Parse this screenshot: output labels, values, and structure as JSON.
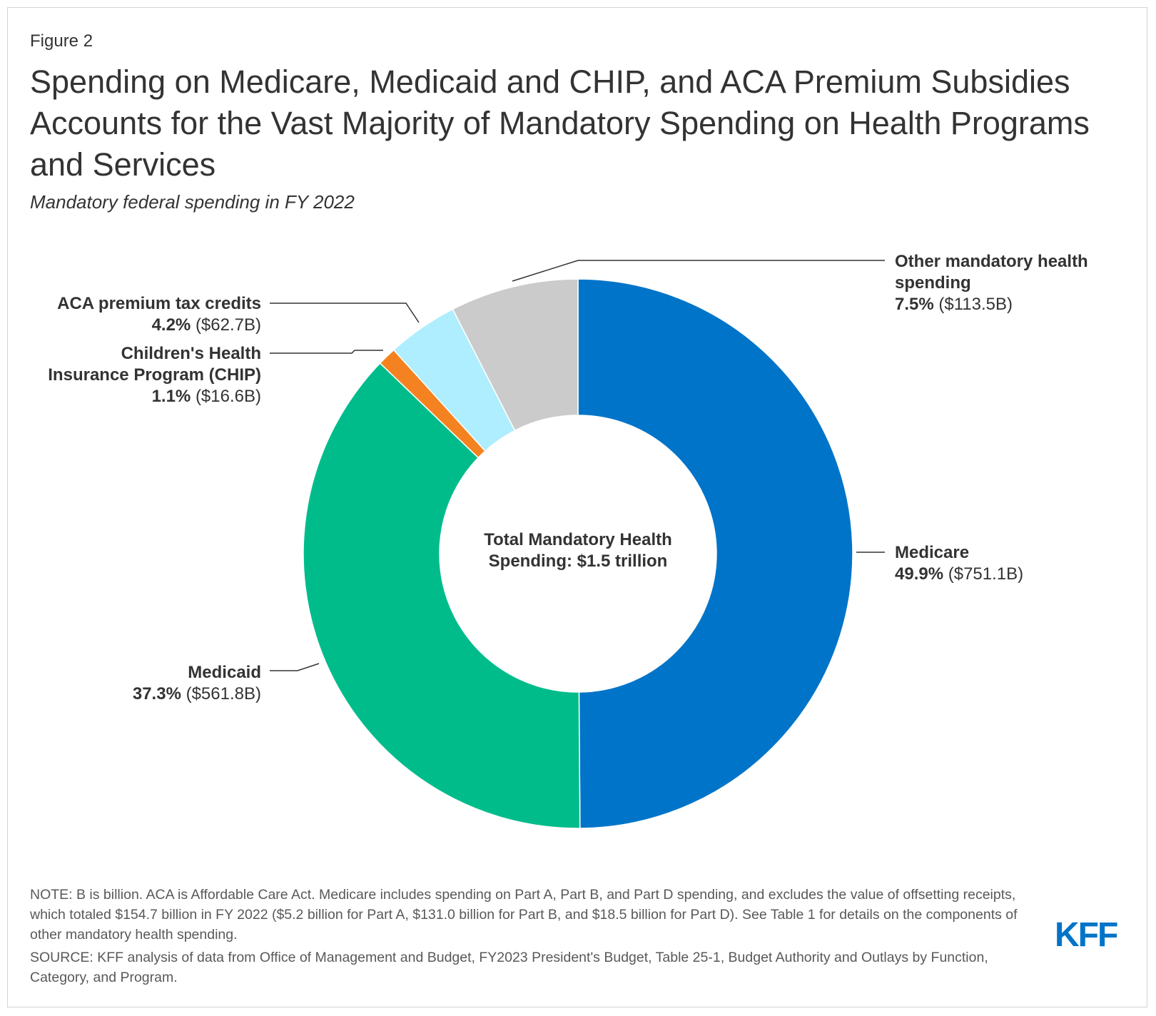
{
  "figure_label": "Figure 2",
  "title": "Spending on Medicare, Medicaid and CHIP, and ACA Premium Subsidies Accounts for the Vast Majority of Mandatory Spending on Health Programs and Services",
  "subtitle": "Mandatory federal spending in FY 2022",
  "center_label": "Total Mandatory Health Spending: $1.5 trillion",
  "logo_text": "KFF",
  "notes": {
    "note": "NOTE: B is billion. ACA is Affordable Care Act. Medicare includes spending on Part A, Part B, and Part D spending, and excludes the value of offsetting receipts, which totaled $154.7 billion in FY 2022 ($5.2 billion for Part A, $131.0 billion for Part B, and $18.5 billion for Part D). See Table 1 for details on the components of other mandatory health spending.",
    "source": "SOURCE: KFF analysis of data from Office of Management and Budget, FY2023 President's Budget, Table 25-1, Budget Authority and Outlays by Function, Category, and Program."
  },
  "colors": {
    "medicare": "#0074c8",
    "medicaid": "#00bc8b",
    "chip": "#f58220",
    "aca": "#aeeefe",
    "other": "#cbcbcb",
    "logo": "#0074c8"
  },
  "chart_data": {
    "type": "pie",
    "variant": "donut",
    "title": "Spending on Medicare, Medicaid and CHIP, and ACA Premium Subsidies Accounts for the Vast Majority of Mandatory Spending on Health Programs and Services",
    "subtitle": "Mandatory federal spending in FY 2022",
    "center_text": "Total Mandatory Health Spending: $1.5 trillion",
    "slices": [
      {
        "name": "Medicare",
        "percent_label": "49.9%",
        "amount_label": "($751.1B)",
        "percent": 49.9,
        "value_billions": 751.1,
        "color": "#0074c8"
      },
      {
        "name": "Medicaid",
        "percent_label": "37.3%",
        "amount_label": "($561.8B)",
        "percent": 37.3,
        "value_billions": 561.8,
        "color": "#00bc8b"
      },
      {
        "name": "Children's Health Insurance Program (CHIP)",
        "name_line1": "Children's Health",
        "name_line2": "Insurance Program (CHIP)",
        "percent_label": "1.1%",
        "amount_label": "($16.6B)",
        "percent": 1.1,
        "value_billions": 16.6,
        "color": "#f58220"
      },
      {
        "name": "ACA premium tax credits",
        "percent_label": "4.2%",
        "amount_label": "($62.7B)",
        "percent": 4.2,
        "value_billions": 62.7,
        "color": "#aeeefe"
      },
      {
        "name": "Other mandatory health spending",
        "name_line1": "Other mandatory health",
        "name_line2": "spending",
        "percent_label": "7.5%",
        "amount_label": "($113.5B)",
        "percent": 7.5,
        "value_billions": 113.5,
        "color": "#cbcbcb"
      }
    ]
  }
}
